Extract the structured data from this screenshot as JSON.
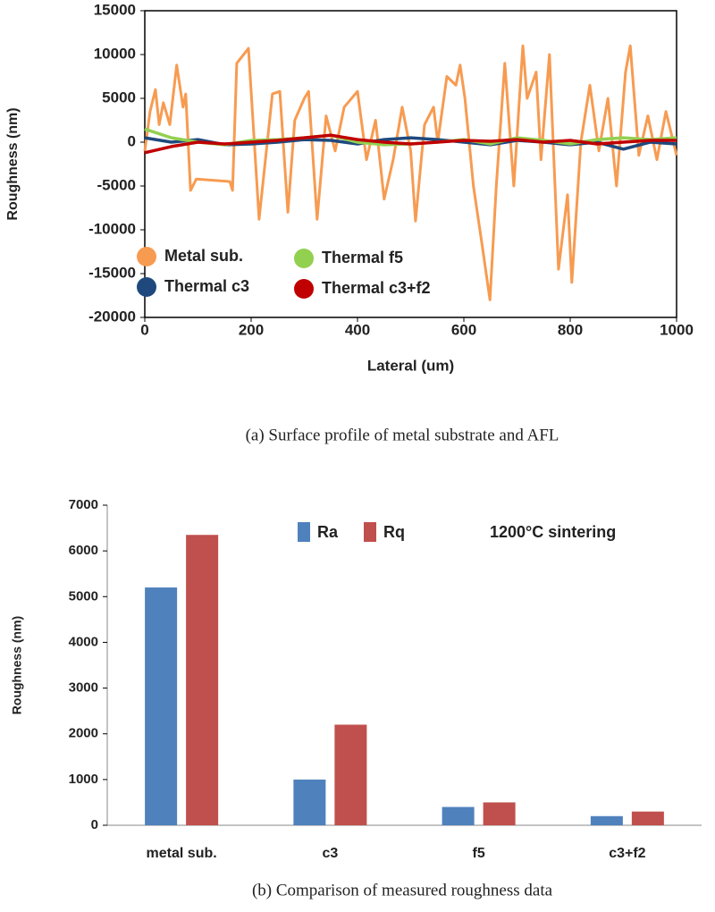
{
  "chart_data": [
    {
      "type": "line",
      "caption": "(a) Surface profile of metal substrate and AFL",
      "x_label": "Lateral (um)",
      "y_label": "Roughness (nm)",
      "xlim": [
        0,
        1000
      ],
      "xticks": [
        0,
        200,
        400,
        600,
        800,
        1000
      ],
      "ylim": [
        -20000,
        15000
      ],
      "yticks": [
        -20000,
        -15000,
        -10000,
        -5000,
        0,
        5000,
        10000,
        15000
      ],
      "frame": true,
      "legend": "lower left",
      "series": [
        {
          "name": "Metal sub.",
          "color": "#f79b51",
          "x": [
            0,
            10,
            20,
            27,
            35,
            47,
            60,
            72,
            77,
            86,
            97,
            160,
            165,
            173,
            195,
            215,
            240,
            254,
            269,
            282,
            300,
            308,
            324,
            341,
            358,
            375,
            400,
            417,
            434,
            450,
            467,
            484,
            500,
            509,
            526,
            543,
            551,
            568,
            585,
            593,
            602,
            618,
            635,
            649,
            661,
            677,
            694,
            711,
            719,
            736,
            745,
            761,
            778,
            795,
            803,
            820,
            837,
            854,
            871,
            887,
            904,
            913,
            929,
            946,
            963,
            980,
            1000
          ],
          "values": [
            -1000,
            3500,
            6000,
            2000,
            4500,
            2000,
            8800,
            4000,
            5500,
            -5500,
            -4200,
            -4500,
            -5500,
            9000,
            10700,
            -8800,
            5500,
            5800,
            -8000,
            2500,
            5000,
            5800,
            -8800,
            3000,
            -1000,
            4000,
            5800,
            -2000,
            2500,
            -6500,
            -2000,
            4000,
            -1000,
            -9000,
            2000,
            4000,
            0,
            7500,
            6500,
            8800,
            5000,
            -5000,
            -12000,
            -18000,
            -5000,
            9000,
            -5000,
            11000,
            5000,
            8000,
            -2000,
            10000,
            -14500,
            -6000,
            -16000,
            0,
            6500,
            -1000,
            5000,
            -5000,
            8000,
            11000,
            -1500,
            3000,
            -2000,
            3500,
            -1500
          ]
        },
        {
          "name": "Thermal c3",
          "color": "#1f497d",
          "x": [
            0,
            50,
            100,
            150,
            200,
            250,
            300,
            350,
            400,
            450,
            500,
            550,
            600,
            650,
            700,
            750,
            800,
            850,
            900,
            950,
            1000
          ],
          "values": [
            500,
            0,
            300,
            -300,
            -200,
            0,
            300,
            200,
            -200,
            300,
            500,
            300,
            0,
            -300,
            200,
            0,
            -300,
            0,
            -800,
            0,
            -200
          ]
        },
        {
          "name": "Thermal f5",
          "color": "#92d050",
          "x": [
            0,
            50,
            100,
            150,
            200,
            250,
            300,
            350,
            400,
            450,
            500,
            550,
            600,
            650,
            700,
            750,
            800,
            850,
            900,
            950,
            1000
          ],
          "values": [
            1500,
            500,
            0,
            -300,
            200,
            300,
            500,
            800,
            0,
            -300,
            -200,
            0,
            300,
            -200,
            500,
            200,
            -200,
            300,
            500,
            300,
            500
          ]
        },
        {
          "name": "Thermal c3+f2",
          "color": "#c00000",
          "x": [
            0,
            50,
            100,
            150,
            200,
            250,
            300,
            350,
            400,
            450,
            500,
            550,
            600,
            650,
            700,
            750,
            800,
            850,
            900,
            950,
            1000
          ],
          "values": [
            -1200,
            -500,
            0,
            -200,
            0,
            200,
            500,
            800,
            300,
            0,
            -200,
            0,
            200,
            100,
            300,
            0,
            200,
            -200,
            0,
            200,
            200
          ]
        }
      ]
    },
    {
      "type": "bar",
      "caption": "(b) Comparison of measured roughness data",
      "y_label": "Roughness (nm)",
      "annotation": "1200°C sintering",
      "categories": [
        "metal sub.",
        "c3",
        "f5",
        "c3+f2"
      ],
      "ylim": [
        0,
        7000
      ],
      "yticks": [
        0,
        1000,
        2000,
        3000,
        4000,
        5000,
        6000,
        7000
      ],
      "frame": false,
      "legend": "upper center",
      "series": [
        {
          "name": "Ra",
          "color": "#4f81bd",
          "values": [
            5200,
            1000,
            400,
            200
          ]
        },
        {
          "name": "Rq",
          "color": "#c0504d",
          "values": [
            6350,
            2200,
            500,
            300
          ]
        }
      ]
    }
  ]
}
